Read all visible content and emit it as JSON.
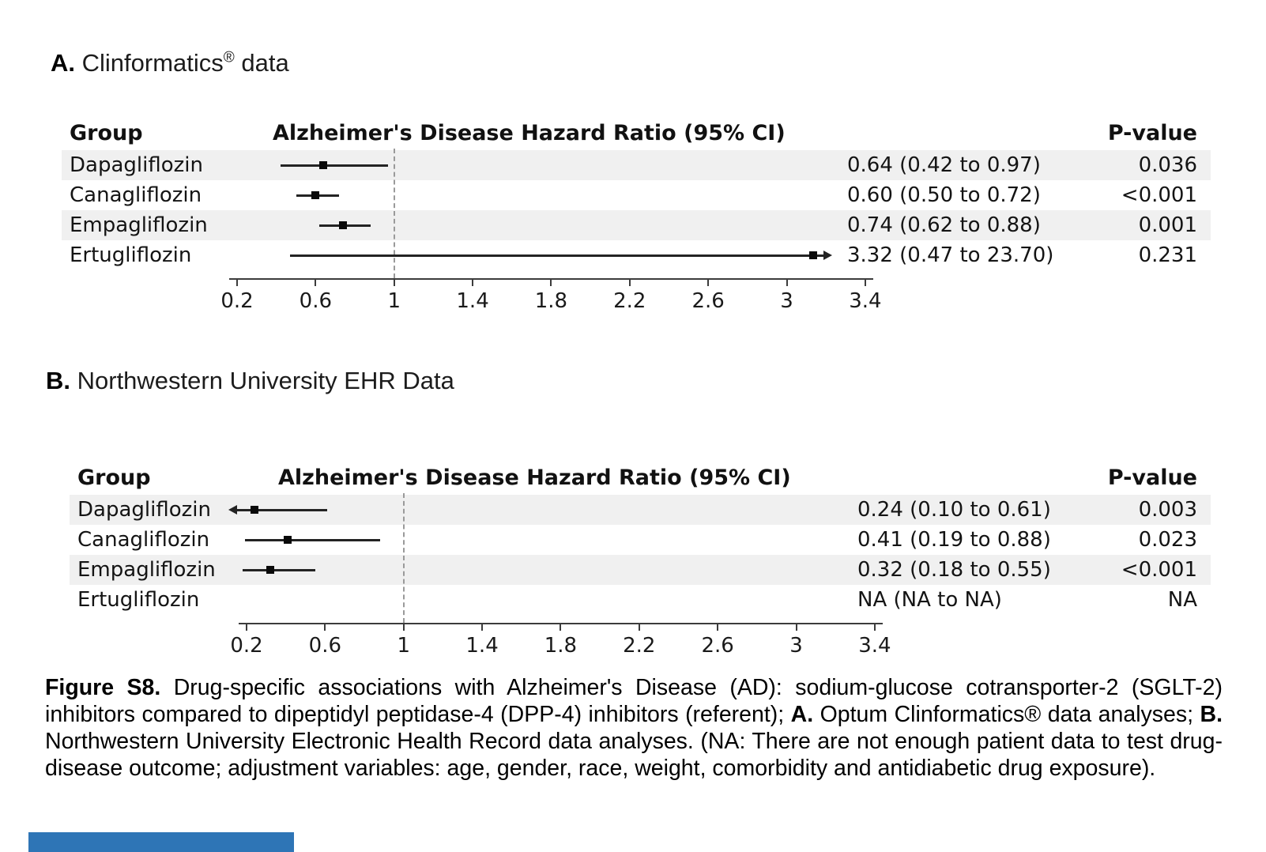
{
  "colors": {
    "background": "#ffffff",
    "row_stripe": "#f0f0f0",
    "ci_line": "#232323",
    "marker": "#0a0a0a",
    "reference_line": "#9a9a9a",
    "axis": "#3c3c3c",
    "text": "#000000",
    "partial_bottom_bar": "#2e75b6"
  },
  "chart_data": [
    {
      "type": "scatter",
      "subtype": "forest-plot",
      "panel_label": "A",
      "title": "A. Clinformatics® data",
      "title_segments": [
        {
          "text": "A.",
          "bold": true
        },
        {
          "text": " Clinformatics"
        },
        {
          "text": "®",
          "sup": true
        },
        {
          "text": " data"
        }
      ],
      "columns": {
        "group": "Group",
        "hr": "Alzheimer's Disease Hazard Ratio (95% CI)",
        "p": "P-value"
      },
      "rows": [
        {
          "group": "Dapagliflozin",
          "estimate": 0.64,
          "ci_low": 0.42,
          "ci_high": 0.97,
          "estimate_text": "0.64 (0.42 to 0.97)",
          "p_text": "0.036",
          "shaded": true,
          "clip_low": false,
          "clip_high": false
        },
        {
          "group": "Canagliflozin",
          "estimate": 0.6,
          "ci_low": 0.5,
          "ci_high": 0.72,
          "estimate_text": "0.60 (0.50 to 0.72)",
          "p_text": "<0.001",
          "shaded": false,
          "clip_low": false,
          "clip_high": false
        },
        {
          "group": "Empagliflozin",
          "estimate": 0.74,
          "ci_low": 0.62,
          "ci_high": 0.88,
          "estimate_text": "0.74 (0.62 to 0.88)",
          "p_text": "0.001",
          "shaded": true,
          "clip_low": false,
          "clip_high": false
        },
        {
          "group": "Ertugliflozin",
          "estimate": 3.32,
          "ci_low": 0.47,
          "ci_high": 23.7,
          "estimate_text": "3.32 (0.47 to 23.70)",
          "p_text": "0.231",
          "shaded": false,
          "clip_low": false,
          "clip_high": true
        }
      ],
      "axis": {
        "scale": "linear",
        "min": 0.2,
        "max": 3.4,
        "reference_line": 1,
        "tick_values": [
          0.2,
          0.6,
          1,
          1.4,
          1.8,
          2.2,
          2.6,
          3,
          3.4
        ],
        "tick_labels": [
          "0.2",
          "0.6",
          "1",
          "1.4",
          "1.8",
          "2.2",
          "2.6",
          "3",
          "3.4"
        ]
      },
      "xlabel": "",
      "ylabel": ""
    },
    {
      "type": "scatter",
      "subtype": "forest-plot",
      "panel_label": "B",
      "title": "B. Northwestern University EHR Data",
      "title_segments": [
        {
          "text": "B.",
          "bold": true
        },
        {
          "text": " Northwestern University EHR Data"
        }
      ],
      "columns": {
        "group": "Group",
        "hr": "Alzheimer's Disease Hazard Ratio (95% CI)",
        "p": "P-value"
      },
      "rows": [
        {
          "group": "Dapagliflozin",
          "estimate": 0.24,
          "ci_low": 0.1,
          "ci_high": 0.61,
          "estimate_text": "0.24 (0.10 to 0.61)",
          "p_text": "0.003",
          "shaded": true,
          "clip_low": true,
          "clip_high": false
        },
        {
          "group": "Canagliflozin",
          "estimate": 0.41,
          "ci_low": 0.19,
          "ci_high": 0.88,
          "estimate_text": "0.41 (0.19 to 0.88)",
          "p_text": "0.023",
          "shaded": false,
          "clip_low": false,
          "clip_high": false
        },
        {
          "group": "Empagliflozin",
          "estimate": 0.32,
          "ci_low": 0.18,
          "ci_high": 0.55,
          "estimate_text": "0.32 (0.18 to 0.55)",
          "p_text": "<0.001",
          "shaded": true,
          "clip_low": false,
          "clip_high": false
        },
        {
          "group": "Ertugliflozin",
          "estimate": null,
          "ci_low": null,
          "ci_high": null,
          "estimate_text": "NA (NA to NA)",
          "p_text": "NA",
          "shaded": false,
          "clip_low": false,
          "clip_high": false
        }
      ],
      "axis": {
        "scale": "linear",
        "min": 0.2,
        "max": 3.4,
        "reference_line": 1,
        "tick_values": [
          0.2,
          0.6,
          1,
          1.4,
          1.8,
          2.2,
          2.6,
          3,
          3.4
        ],
        "tick_labels": [
          "0.2",
          "0.6",
          "1",
          "1.4",
          "1.8",
          "2.2",
          "2.6",
          "3",
          "3.4"
        ]
      },
      "xlabel": "",
      "ylabel": ""
    }
  ],
  "caption": {
    "segments": [
      {
        "text": "Figure S8.",
        "bold": true
      },
      {
        "text": " Drug-specific associations with Alzheimer's Disease (AD): sodium-glucose cotransporter-2 (SGLT-2) inhibitors compared to dipeptidyl peptidase-4 (DPP-4) inhibitors (referent); "
      },
      {
        "text": "A.",
        "bold": true
      },
      {
        "text": " Optum Clinformatics® data analyses; "
      },
      {
        "text": "B.",
        "bold": true
      },
      {
        "text": " Northwestern University Electronic Health Record data analyses. (NA: There are not enough patient data to test drug-disease outcome; adjustment variables: age, gender, race, weight, comorbidity and antidiabetic drug exposure)."
      }
    ]
  }
}
